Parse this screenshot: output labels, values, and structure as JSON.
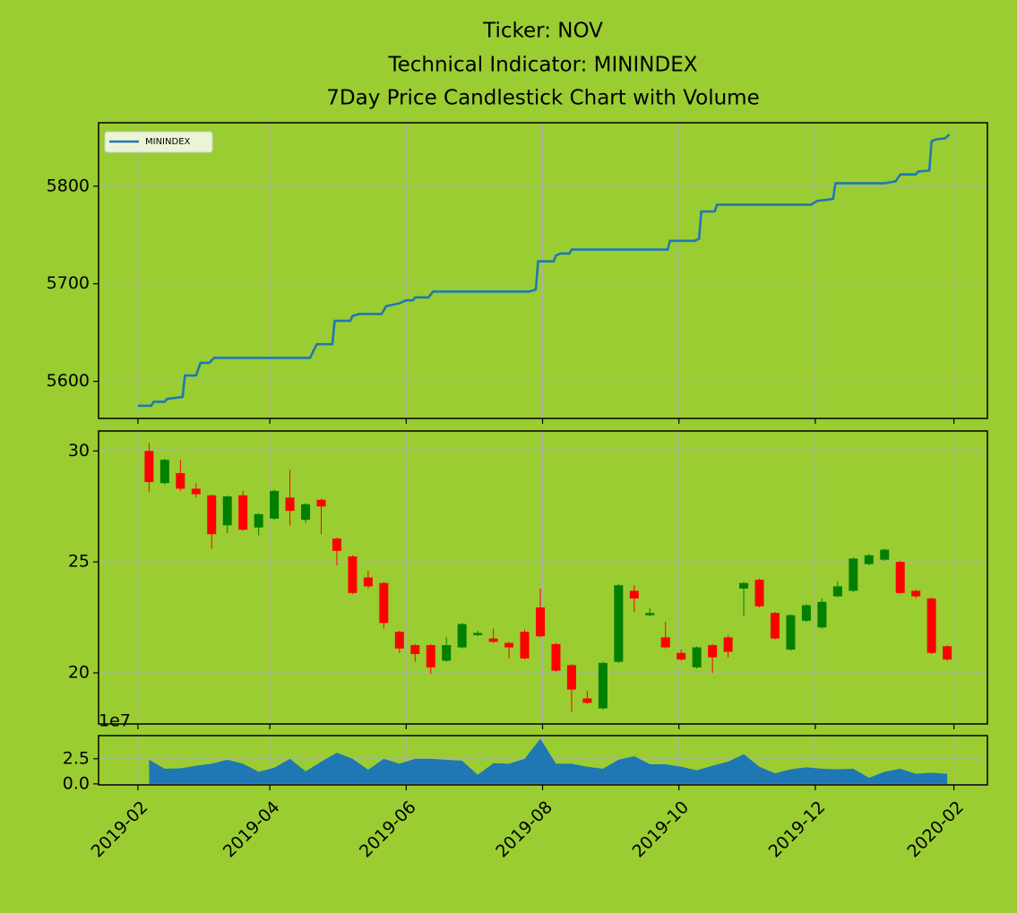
{
  "title": [
    "Ticker: NOV",
    "Technical Indicator: MININDEX",
    "7Day Price Candlestick Chart with Volume"
  ],
  "chart_data": [
    {
      "type": "line",
      "series": [
        {
          "name": "MININDEX",
          "color": "#1f77b4",
          "x": [
            0,
            6,
            7,
            12,
            13,
            20,
            21,
            26,
            28,
            32,
            34,
            77,
            80,
            87,
            88,
            95,
            96,
            99,
            109,
            111,
            117,
            120,
            123,
            124,
            130,
            132,
            175,
            178,
            179,
            186,
            187,
            189,
            193,
            194,
            237,
            238,
            249,
            251,
            252,
            258,
            259,
            301,
            304,
            308,
            311,
            312,
            334,
            339,
            341,
            348,
            349,
            354,
            355,
            357,
            361,
            363
          ],
          "values": [
            5575,
            5575,
            5579,
            5579,
            5582,
            5584,
            5606,
            5606,
            5619,
            5619,
            5624,
            5624,
            5638,
            5638,
            5662,
            5662,
            5667,
            5669,
            5669,
            5677,
            5680,
            5683,
            5683,
            5686,
            5686,
            5692,
            5692,
            5694,
            5723,
            5723,
            5729,
            5731,
            5731,
            5735,
            5735,
            5744,
            5744,
            5746,
            5774,
            5774,
            5781,
            5781,
            5785,
            5786,
            5787,
            5803,
            5803,
            5805,
            5812,
            5812,
            5815,
            5816,
            5846,
            5848,
            5849,
            5853
          ]
        }
      ],
      "ylim": [
        5562,
        5865
      ],
      "yticks": [
        5600,
        5700,
        5800
      ],
      "grid": true,
      "legend": "upper left"
    },
    {
      "type": "candlestick",
      "x": [
        5,
        12,
        19,
        26,
        33,
        40,
        47,
        54,
        61,
        68,
        75,
        82,
        89,
        96,
        103,
        110,
        117,
        124,
        131,
        138,
        145,
        152,
        159,
        166,
        173,
        180,
        187,
        194,
        201,
        208,
        215,
        222,
        229,
        236,
        243,
        250,
        257,
        264,
        271,
        278,
        285,
        292,
        299,
        306,
        313,
        320,
        327,
        334,
        341,
        348,
        355,
        362
      ],
      "open": [
        30.0,
        28.55,
        29.0,
        28.3,
        28.0,
        26.65,
        28.0,
        26.55,
        26.95,
        27.9,
        26.9,
        27.8,
        26.05,
        25.25,
        24.3,
        24.05,
        21.85,
        21.25,
        21.25,
        20.55,
        21.15,
        21.7,
        21.55,
        21.35,
        21.85,
        22.95,
        21.3,
        20.35,
        18.85,
        18.4,
        20.5,
        23.7,
        22.6,
        21.6,
        20.9,
        20.25,
        21.25,
        21.6,
        23.8,
        24.2,
        22.7,
        21.05,
        22.35,
        22.05,
        23.45,
        23.7,
        24.9,
        25.1,
        25.0,
        23.7,
        23.35,
        21.2
      ],
      "high": [
        30.35,
        29.65,
        29.6,
        28.55,
        28.05,
        28.0,
        28.2,
        27.2,
        28.25,
        29.15,
        27.65,
        27.85,
        26.1,
        25.3,
        24.6,
        24.1,
        21.9,
        21.3,
        21.3,
        21.6,
        22.25,
        21.9,
        22.0,
        21.4,
        21.95,
        23.8,
        21.35,
        20.4,
        19.2,
        20.5,
        24.0,
        23.95,
        22.9,
        22.3,
        21.05,
        21.2,
        21.3,
        21.7,
        24.1,
        24.25,
        22.75,
        22.65,
        23.1,
        23.35,
        24.1,
        25.2,
        25.35,
        25.6,
        25.05,
        23.75,
        23.4,
        21.25
      ],
      "low": [
        28.15,
        28.5,
        28.2,
        27.9,
        25.6,
        26.3,
        26.4,
        26.2,
        26.9,
        26.65,
        26.75,
        26.25,
        24.85,
        23.55,
        23.8,
        22.0,
        20.9,
        20.5,
        19.95,
        20.5,
        21.1,
        21.65,
        21.35,
        20.65,
        20.6,
        21.6,
        20.05,
        18.25,
        18.6,
        18.35,
        20.45,
        22.75,
        22.55,
        21.1,
        20.55,
        20.2,
        20.0,
        20.7,
        22.55,
        22.95,
        21.5,
        21.0,
        22.3,
        22.0,
        23.4,
        23.65,
        24.85,
        25.05,
        23.55,
        23.35,
        20.85,
        20.55
      ],
      "close": [
        28.6,
        29.6,
        28.3,
        28.05,
        26.25,
        27.95,
        26.45,
        27.15,
        28.2,
        27.3,
        27.6,
        27.5,
        25.5,
        23.6,
        23.9,
        22.25,
        21.1,
        20.85,
        20.25,
        21.25,
        22.2,
        21.8,
        21.4,
        21.15,
        20.65,
        21.65,
        20.1,
        19.25,
        18.65,
        20.45,
        23.95,
        23.35,
        22.7,
        21.15,
        20.6,
        21.15,
        20.7,
        20.95,
        24.05,
        23.0,
        21.55,
        22.6,
        23.05,
        23.2,
        23.9,
        25.15,
        25.3,
        25.55,
        23.6,
        23.45,
        20.9,
        20.6
      ],
      "up_color": "green",
      "down_color": "red",
      "ylim": [
        17.7,
        30.9
      ],
      "yticks": [
        20,
        25,
        30
      ],
      "grid": true
    },
    {
      "type": "area",
      "x": [
        5,
        12,
        19,
        26,
        33,
        40,
        47,
        54,
        61,
        68,
        75,
        82,
        89,
        96,
        103,
        110,
        117,
        124,
        131,
        138,
        145,
        152,
        159,
        166,
        173,
        180,
        187,
        194,
        201,
        208,
        215,
        222,
        229,
        236,
        243,
        250,
        257,
        264,
        271,
        278,
        285,
        292,
        299,
        306,
        313,
        320,
        327,
        334,
        341,
        348,
        355,
        362
      ],
      "values": [
        2.4,
        1.5,
        1.55,
        1.8,
        2.0,
        2.4,
        2.0,
        1.2,
        1.6,
        2.5,
        1.25,
        2.2,
        3.1,
        2.5,
        1.4,
        2.5,
        2.0,
        2.5,
        2.5,
        2.4,
        2.3,
        0.9,
        2.05,
        2.0,
        2.5,
        4.5,
        2.0,
        2.0,
        1.7,
        1.5,
        2.4,
        2.75,
        1.95,
        1.95,
        1.7,
        1.35,
        1.8,
        2.2,
        2.95,
        1.7,
        1.05,
        1.45,
        1.65,
        1.5,
        1.45,
        1.5,
        0.6,
        1.2,
        1.5,
        1.0,
        1.1,
        1.0
      ],
      "color": "#1f77b4",
      "offset_label": "1e7",
      "ylim": [
        -0.1,
        4.8
      ],
      "yticks": [
        {
          "value": 0,
          "label": "0.0"
        },
        2.5
      ],
      "grid": true,
      "xlim": [
        -17.6,
        380
      ],
      "xticks": [
        {
          "value": 0,
          "label": "2019-02"
        },
        {
          "value": 59,
          "label": "2019-04"
        },
        {
          "value": 120,
          "label": "2019-06"
        },
        {
          "value": 181,
          "label": "2019-08"
        },
        {
          "value": 242,
          "label": "2019-10"
        },
        {
          "value": 303,
          "label": "2019-12"
        },
        {
          "value": 365,
          "label": "2020-02"
        }
      ]
    }
  ]
}
